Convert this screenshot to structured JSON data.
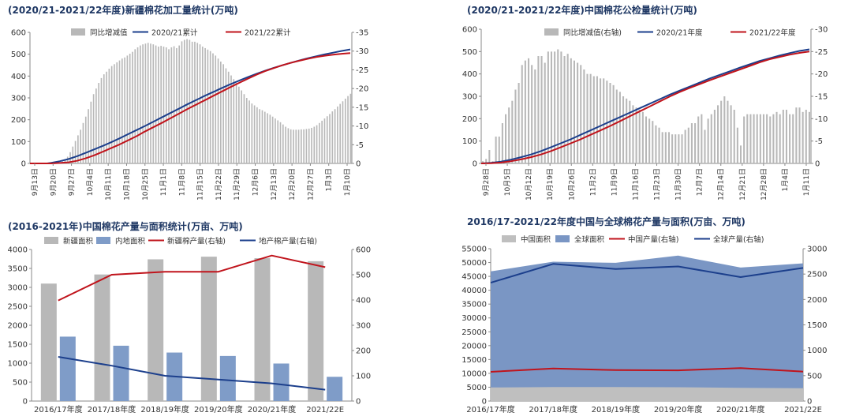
{
  "titles": {
    "p1": "(2020/21-2021/22年度)新疆棉花加工量统计(万吨)",
    "p2": "(2020/21-2021/22年度)中国棉花公检量统计(万吨)",
    "p3": "(2016-2021年)中国棉花产量与面积统计(万亩、万吨)",
    "p4": "2016/17-2021/22年度中国与全球棉花产量与面积(万亩、万吨)"
  },
  "colors": {
    "bar_gray": "#b8b8b8",
    "bar_blue": "#7f9cc8",
    "line_red": "#c0141c",
    "line_navy": "#1c3f8c",
    "area_blue": "#7a96c4",
    "area_gray": "#bfbfbf",
    "axis": "#888888",
    "title": "#1f3864"
  },
  "chart_data": [
    {
      "id": "p1",
      "type": "bar+line",
      "title": "(2020/21-2021/22年度)新疆棉花加工量统计(万吨)",
      "legend": [
        "同比增减值",
        "2020/21累计",
        "2021/22累计"
      ],
      "legend_position": "top",
      "x_ticks": [
        "9月13日",
        "9月20日",
        "9月27日",
        "10月4日",
        "10月11日",
        "10月18日",
        "10月25日",
        "11月1日",
        "11月8日",
        "11月15日",
        "11月22日",
        "11月29日",
        "12月6日",
        "12月13日",
        "12月20日",
        "12月27日",
        "1月3日",
        "1月10日"
      ],
      "ylim_left": [
        0,
        600
      ],
      "yticks_left": [
        0,
        100,
        200,
        300,
        400,
        500,
        600
      ],
      "ylim_right": [
        0,
        -35
      ],
      "yticks_right": [
        0,
        -5,
        -10,
        -15,
        -20,
        -25,
        -30,
        -35
      ],
      "bar_series": {
        "name": "同比增减值",
        "axis": "right",
        "values": [
          0,
          0,
          0,
          0,
          0,
          0,
          0,
          0,
          0,
          0,
          0,
          0,
          -0.5,
          -1,
          -1.8,
          -3,
          -4.5,
          -6,
          -7.5,
          -9,
          -10.8,
          -12.5,
          -14.5,
          -16.5,
          -18.5,
          -20,
          -21.5,
          -22.8,
          -23.8,
          -24.5,
          -25.3,
          -26,
          -26.5,
          -27,
          -27.5,
          -28,
          -28.3,
          -28.8,
          -29.3,
          -29.8,
          -30.5,
          -31,
          -31.5,
          -31.8,
          -32,
          -32.2,
          -32,
          -31.8,
          -31.5,
          -31.2,
          -31.4,
          -31.2,
          -31,
          -30.5,
          -31,
          -31.3,
          -30.8,
          -31.5,
          -32.6,
          -33,
          -33.2,
          -33,
          -32.5,
          -32.5,
          -32.2,
          -31.8,
          -31.2,
          -30.8,
          -30.4,
          -30,
          -29.4,
          -28.8,
          -28,
          -27.2,
          -26.5,
          -25.4,
          -24.5,
          -23.5,
          -22.5,
          -21.5,
          -20.5,
          -19.5,
          -18.5,
          -17.5,
          -16.8,
          -16,
          -15.5,
          -15,
          -14.5,
          -14.2,
          -13.8,
          -13.4,
          -13,
          -12.5,
          -12,
          -11.5,
          -11,
          -10.4,
          -9.8,
          -9.4,
          -9.1,
          -9,
          -9,
          -9,
          -9.1,
          -9.1,
          -9.2,
          -9.3,
          -9.5,
          -9.8,
          -10.2,
          -10.8,
          -11.4,
          -12,
          -12.6,
          -13.2,
          -13.9,
          -14.5,
          -15.2,
          -15.9,
          -16.6,
          -17.3,
          -18,
          -18.6
        ]
      },
      "line_series": [
        {
          "name": "2020/21累计",
          "axis": "left",
          "color": "#1c3f8c",
          "points": [
            [
              0,
              0
            ],
            [
              8,
              0
            ],
            [
              10,
              3
            ],
            [
              14,
              10
            ],
            [
              18,
              20
            ],
            [
              22,
              33
            ],
            [
              26,
              48
            ],
            [
              30,
              64
            ],
            [
              34,
              80
            ],
            [
              38,
              97
            ],
            [
              42,
              115
            ],
            [
              46,
              134
            ],
            [
              50,
              153
            ],
            [
              54,
              172
            ],
            [
              58,
              192
            ],
            [
              62,
              212
            ],
            [
              66,
              232
            ],
            [
              70,
              252
            ],
            [
              74,
              272
            ],
            [
              78,
              291
            ],
            [
              82,
              310
            ],
            [
              86,
              328
            ],
            [
              90,
              346
            ],
            [
              94,
              363
            ],
            [
              98,
              379
            ],
            [
              102,
              395
            ],
            [
              106,
              410
            ],
            [
              110,
              424
            ],
            [
              114,
              437
            ],
            [
              118,
              449
            ],
            [
              122,
              460
            ],
            [
              126,
              471
            ],
            [
              130,
              481
            ],
            [
              134,
              490
            ],
            [
              138,
              499
            ],
            [
              142,
              507
            ],
            [
              146,
              515
            ],
            [
              150,
              522
            ]
          ]
        },
        {
          "name": "2021/22累计",
          "axis": "left",
          "color": "#c0141c",
          "points": [
            [
              0,
              0
            ],
            [
              10,
              0
            ],
            [
              14,
              2
            ],
            [
              18,
              5
            ],
            [
              22,
              12
            ],
            [
              26,
              23
            ],
            [
              30,
              37
            ],
            [
              34,
              53
            ],
            [
              38,
              70
            ],
            [
              42,
              87
            ],
            [
              46,
              106
            ],
            [
              50,
              125
            ],
            [
              54,
              147
            ],
            [
              58,
              167
            ],
            [
              62,
              187
            ],
            [
              66,
              208
            ],
            [
              70,
              229
            ],
            [
              74,
              250
            ],
            [
              78,
              270
            ],
            [
              82,
              290
            ],
            [
              86,
              310
            ],
            [
              90,
              330
            ],
            [
              94,
              350
            ],
            [
              98,
              369
            ],
            [
              102,
              388
            ],
            [
              106,
              406
            ],
            [
              110,
              422
            ],
            [
              114,
              436
            ],
            [
              118,
              449
            ],
            [
              122,
              460
            ],
            [
              126,
              470
            ],
            [
              130,
              479
            ],
            [
              134,
              487
            ],
            [
              138,
              493
            ],
            [
              142,
              498
            ],
            [
              146,
              502
            ],
            [
              150,
              505
            ]
          ]
        }
      ]
    },
    {
      "id": "p2",
      "type": "bar+line",
      "title": "(2020/21-2021/22年度)中国棉花公检量统计(万吨)",
      "legend": [
        "同比增减值(右轴)",
        "2020/21年度",
        "2021/22年度"
      ],
      "legend_position": "top",
      "x_ticks": [
        "9月28日",
        "10月5日",
        "10月12日",
        "10月19日",
        "10月26日",
        "11月2日",
        "11月9日",
        "11月16日",
        "11月23日",
        "11月30日",
        "12月7日",
        "12月14日",
        "12月21日",
        "12月28日",
        "1月4日",
        "1月11日"
      ],
      "ylim_left": [
        0,
        600
      ],
      "yticks_left": [
        0,
        100,
        200,
        300,
        400,
        500,
        600
      ],
      "ylim_right": [
        0,
        -30
      ],
      "yticks_right": [
        0,
        -5,
        -10,
        -15,
        -20,
        -25,
        -30
      ],
      "bar_series": {
        "name": "同比增减值(右轴)",
        "axis": "right",
        "values": [
          -0.5,
          -1,
          -3,
          -0.5,
          -6,
          -6,
          -9,
          -11,
          -12.5,
          -14,
          -16.5,
          -18,
          -22,
          -23,
          -23.5,
          -22,
          -21,
          -24,
          -24,
          -22.5,
          -25,
          -25,
          -25,
          -25.5,
          -25,
          -24,
          -24.5,
          -23.5,
          -23,
          -22.5,
          -22,
          -21,
          -20,
          -20,
          -19.5,
          -19.5,
          -19,
          -19,
          -18.5,
          -18,
          -17.5,
          -16.5,
          -16,
          -15,
          -14.5,
          -14,
          -13,
          -12.5,
          -12,
          -11.5,
          -10.5,
          -10,
          -9.5,
          -8.5,
          -8,
          -7,
          -7,
          -7,
          -6.5,
          -6.5,
          -6.5,
          -6.5,
          -7.5,
          -8,
          -9,
          -9,
          -10.5,
          -11,
          -7.5,
          -10,
          -11,
          -12,
          -13,
          -14,
          -15,
          -14,
          -13,
          -12,
          -8,
          -4,
          -10.5,
          -11,
          -11,
          -11,
          -11,
          -11,
          -11,
          -11,
          -10.5,
          -11,
          -11.5,
          -11,
          -12,
          -12,
          -11,
          -11,
          -12.5,
          -12.5,
          -11.5,
          -12,
          -11.5
        ]
      },
      "line_series": [
        {
          "name": "2020/21年度",
          "axis": "left",
          "color": "#1c3f8c",
          "points": [
            [
              0,
              0
            ],
            [
              5,
              3
            ],
            [
              10,
              8
            ],
            [
              15,
              17
            ],
            [
              20,
              28
            ],
            [
              25,
              40
            ],
            [
              30,
              55
            ],
            [
              35,
              72
            ],
            [
              40,
              90
            ],
            [
              45,
              108
            ],
            [
              50,
              128
            ],
            [
              55,
              148
            ],
            [
              60,
              168
            ],
            [
              65,
              188
            ],
            [
              70,
              208
            ],
            [
              75,
              228
            ],
            [
              80,
              248
            ],
            [
              85,
              268
            ],
            [
              90,
              288
            ],
            [
              95,
              308
            ],
            [
              100,
              326
            ],
            [
              105,
              344
            ],
            [
              110,
              362
            ],
            [
              115,
              380
            ],
            [
              120,
              396
            ],
            [
              125,
              412
            ],
            [
              130,
              428
            ],
            [
              135,
              443
            ],
            [
              140,
              458
            ],
            [
              145,
              470
            ],
            [
              150,
              482
            ],
            [
              155,
              493
            ],
            [
              160,
              503
            ],
            [
              165,
              510
            ]
          ]
        },
        {
          "name": "2021/22年度",
          "axis": "left",
          "color": "#c0141c",
          "points": [
            [
              0,
              0
            ],
            [
              5,
              1
            ],
            [
              10,
              4
            ],
            [
              15,
              10
            ],
            [
              20,
              18
            ],
            [
              25,
              28
            ],
            [
              30,
              40
            ],
            [
              35,
              55
            ],
            [
              40,
              72
            ],
            [
              45,
              90
            ],
            [
              50,
              108
            ],
            [
              55,
              128
            ],
            [
              60,
              148
            ],
            [
              65,
              168
            ],
            [
              70,
              190
            ],
            [
              75,
              212
            ],
            [
              80,
              234
            ],
            [
              85,
              256
            ],
            [
              90,
              278
            ],
            [
              95,
              300
            ],
            [
              100,
              320
            ],
            [
              105,
              338
            ],
            [
              110,
              355
            ],
            [
              115,
              372
            ],
            [
              120,
              388
            ],
            [
              125,
              404
            ],
            [
              130,
              420
            ],
            [
              135,
              436
            ],
            [
              140,
              452
            ],
            [
              145,
              466
            ],
            [
              150,
              476
            ],
            [
              155,
              486
            ],
            [
              160,
              494
            ],
            [
              165,
              500
            ]
          ]
        }
      ]
    },
    {
      "id": "p3",
      "type": "bar+line",
      "title": "(2016-2021年)中国棉花产量与面积统计(万亩、万吨)",
      "legend": [
        "新疆面积",
        "内地面积",
        "新疆棉产量(右轴)",
        "地产棉产量(右轴)"
      ],
      "legend_position": "top",
      "categories": [
        "2016/17年度",
        "2017/18年度",
        "2018/19年度",
        "2019/20年度",
        "2020/21年度",
        "2021/22E"
      ],
      "ylim_left": [
        0,
        4000
      ],
      "yticks_left": [
        0,
        500,
        1000,
        1500,
        2000,
        2500,
        3000,
        3500,
        4000
      ],
      "ylim_right": [
        0,
        600
      ],
      "yticks_right": [
        0,
        100,
        200,
        300,
        400,
        500,
        600
      ],
      "series": [
        {
          "name": "新疆面积",
          "kind": "bar",
          "axis": "left",
          "values": [
            3100,
            3340,
            3740,
            3810,
            3770,
            3690
          ]
        },
        {
          "name": "内地面积",
          "kind": "bar",
          "axis": "left",
          "values": [
            1700,
            1460,
            1280,
            1190,
            990,
            640
          ]
        },
        {
          "name": "新疆棉产量(右轴)",
          "kind": "line",
          "axis": "right",
          "values": [
            398,
            500,
            512,
            512,
            576,
            530
          ]
        },
        {
          "name": "地产棉产量(右轴)",
          "kind": "line",
          "axis": "right",
          "values": [
            175,
            140,
            100,
            85,
            70,
            45
          ]
        }
      ]
    },
    {
      "id": "p4",
      "type": "area+line",
      "title": "2016/17-2021/22年度中国与全球棉花产量与面积(万亩、万吨)",
      "legend": [
        "中国面积",
        "全球面积",
        "中国产量(右轴)",
        "全球产量(右轴)"
      ],
      "legend_position": "top",
      "categories": [
        "2016/17年度",
        "2017/18年度",
        "2018/19年度",
        "2019/20年度",
        "2020/21年度",
        "2021/22E"
      ],
      "ylim_left": [
        0,
        55000
      ],
      "yticks_left": [
        0,
        5000,
        10000,
        15000,
        20000,
        25000,
        30000,
        35000,
        40000,
        45000,
        50000,
        55000
      ],
      "ylim_right": [
        0,
        3000
      ],
      "yticks_right": [
        0,
        500,
        1000,
        1500,
        2000,
        2500,
        3000
      ],
      "series": [
        {
          "name": "全球面积",
          "kind": "area",
          "axis": "left",
          "values": [
            46800,
            50300,
            49900,
            52500,
            48200,
            49700
          ]
        },
        {
          "name": "中国面积",
          "kind": "area",
          "axis": "left",
          "values": [
            4900,
            5050,
            5050,
            5000,
            4800,
            4650
          ]
        },
        {
          "name": "中国产量(右轴)",
          "kind": "line",
          "axis": "right",
          "values": [
            575,
            640,
            610,
            605,
            650,
            580
          ]
        },
        {
          "name": "全球产量(右轴)",
          "kind": "line",
          "axis": "right",
          "values": [
            2330,
            2700,
            2600,
            2650,
            2440,
            2620
          ]
        }
      ]
    }
  ]
}
